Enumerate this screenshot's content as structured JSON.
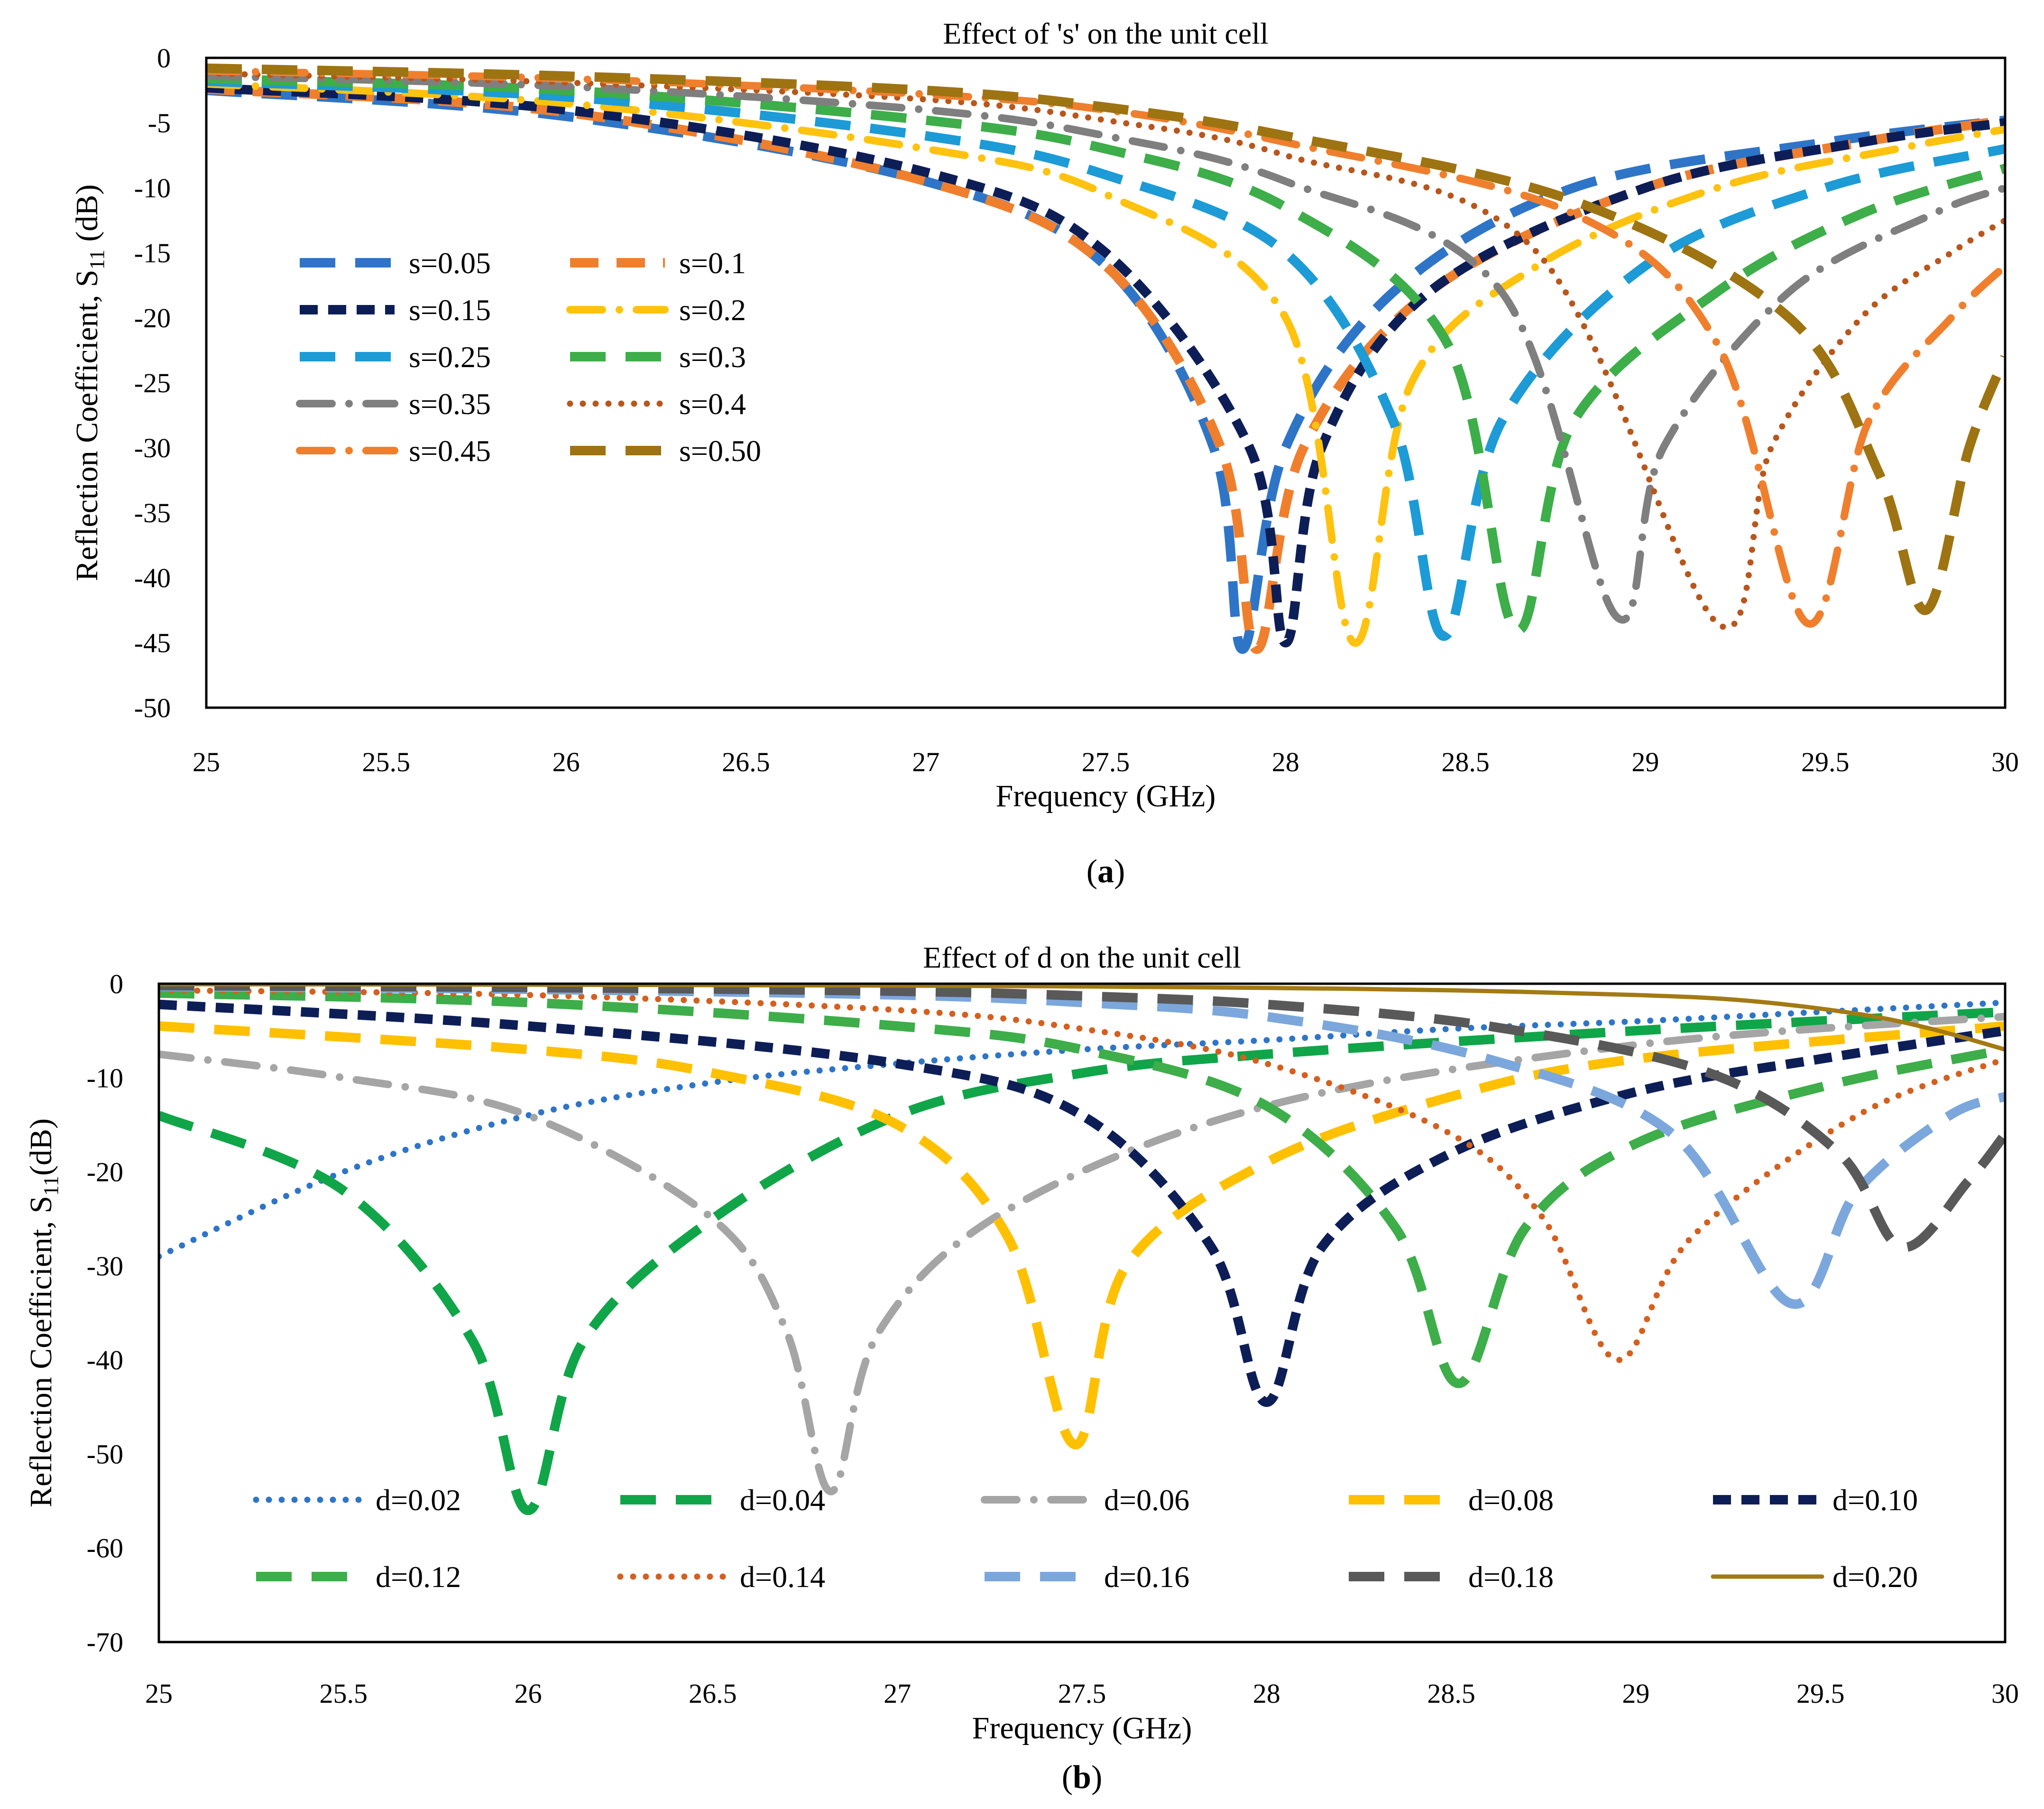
{
  "chart_data": [
    {
      "type": "line",
      "title": "Effect of 's' on the unit cell",
      "xlabel": "Frequency (GHz)",
      "ylabel_main": "Reflection Coefficient, S",
      "ylabel_sub": "11",
      "ylabel_unit": " (dB)",
      "xlim": [
        25,
        30
      ],
      "ylim": [
        -50,
        0
      ],
      "xticks": [
        "25",
        "25.5",
        "26",
        "26.5",
        "27",
        "27.5",
        "28",
        "28.5",
        "29",
        "29.5",
        "30"
      ],
      "yticks": [
        "0",
        "-5",
        "-10",
        "-15",
        "-20",
        "-25",
        "-30",
        "-35",
        "-40",
        "-45",
        "-50"
      ],
      "grid": false,
      "caption_open": "(",
      "caption_letter": "a",
      "caption_close": ")",
      "legend_position": "left-middle, two columns",
      "series": [
        {
          "name": "s=0.05",
          "color": "#2E75C8",
          "style": "long-dash",
          "x": [
            25,
            26,
            27,
            27.5,
            27.8,
            27.88,
            28.0,
            28.3,
            28.8,
            29.5,
            30
          ],
          "y": [
            -2.5,
            -4.5,
            -9.5,
            -16,
            -30,
            -45.5,
            -30,
            -18,
            -10,
            -6.5,
            -4.8
          ]
        },
        {
          "name": "s=0.1",
          "color": "#F07F2D",
          "style": "dash",
          "x": [
            25,
            26,
            27,
            27.5,
            27.82,
            27.92,
            28.05,
            28.4,
            29.0,
            29.6,
            30
          ],
          "y": [
            -2.4,
            -4.2,
            -9.5,
            -16,
            -30,
            -45.5,
            -30,
            -18,
            -10,
            -6.5,
            -4.8
          ]
        },
        {
          "name": "s=0.15",
          "color": "#0D1E57",
          "style": "short-dash",
          "x": [
            25,
            26,
            27,
            27.5,
            27.9,
            28.0,
            28.1,
            28.4,
            29.0,
            29.6,
            30
          ],
          "y": [
            -2.3,
            -4.0,
            -8.8,
            -15,
            -30,
            -45,
            -30,
            -18,
            -10,
            -6.5,
            -5
          ]
        },
        {
          "name": "s=0.2",
          "color": "#FFC20E",
          "style": "dash-dot",
          "x": [
            25,
            26,
            27,
            27.5,
            28.0,
            28.19,
            28.35,
            28.7,
            29.2,
            29.7,
            30
          ],
          "y": [
            -2.0,
            -3.5,
            -7.0,
            -10.5,
            -20,
            -45,
            -25,
            -16,
            -10,
            -7,
            -5.5
          ]
        },
        {
          "name": "s=0.25",
          "color": "#1C9BD6",
          "style": "long-dash",
          "x": [
            25,
            26,
            27,
            27.5,
            28.0,
            28.3,
            28.44,
            28.6,
            29.0,
            29.5,
            30
          ],
          "y": [
            -1.8,
            -3.0,
            -6.0,
            -9.0,
            -15,
            -28,
            -44.5,
            -28,
            -16,
            -10,
            -7
          ]
        },
        {
          "name": "s=0.3",
          "color": "#3DAE49",
          "style": "long-dash",
          "x": [
            25,
            26,
            27,
            27.5,
            28.0,
            28.45,
            28.64,
            28.8,
            29.2,
            29.6,
            30
          ],
          "y": [
            -1.6,
            -2.5,
            -4.8,
            -7.0,
            -11.5,
            -22,
            -44,
            -28,
            -18,
            -12,
            -8.5
          ]
        },
        {
          "name": "s=0.35",
          "color": "#7F7F7F",
          "style": "dash-dot",
          "x": [
            25,
            26,
            27,
            27.5,
            28.0,
            28.6,
            28.92,
            29.05,
            29.4,
            29.8,
            30
          ],
          "y": [
            -1.4,
            -2.2,
            -4.0,
            -6.0,
            -9.5,
            -18,
            -43,
            -30,
            -18,
            -12,
            -10
          ]
        },
        {
          "name": "s=0.4",
          "color": "#B8561C",
          "style": "dotted",
          "x": [
            25,
            26,
            27,
            27.5,
            28.0,
            28.7,
            29.2,
            29.35,
            29.6,
            29.85,
            30
          ],
          "y": [
            -1.2,
            -1.9,
            -3.2,
            -4.8,
            -7.5,
            -15,
            -43.5,
            -30,
            -20,
            -15,
            -12.5
          ]
        },
        {
          "name": "s=0.45",
          "color": "#F07F2D",
          "style": "dash-dot",
          "x": [
            25,
            26,
            27,
            27.5,
            28.0,
            28.8,
            29.2,
            29.45,
            29.62,
            29.85,
            30
          ],
          "y": [
            -1.0,
            -1.6,
            -2.8,
            -4.0,
            -6.5,
            -12,
            -22,
            -43.5,
            -28,
            -20,
            -16
          ]
        },
        {
          "name": "s=0.50",
          "color": "#9E7311",
          "style": "long-dash",
          "x": [
            25,
            26,
            27,
            27.5,
            28.0,
            28.8,
            29.4,
            29.65,
            29.78,
            29.9,
            30
          ],
          "y": [
            -0.8,
            -1.4,
            -2.5,
            -3.8,
            -6.0,
            -11,
            -20,
            -32,
            -42.5,
            -30,
            -23
          ]
        }
      ]
    },
    {
      "type": "line",
      "title": "Effect of d on the unit cell",
      "xlabel": "Frequency (GHz)",
      "ylabel_main": "Reflection Coefficient, S",
      "ylabel_sub": "11",
      "ylabel_unit": "(dB)",
      "xlim": [
        25,
        30
      ],
      "ylim": [
        -70,
        0
      ],
      "xticks": [
        "25",
        "25.5",
        "26",
        "26.5",
        "27",
        "27.5",
        "28",
        "28.5",
        "29",
        "29.5",
        "30"
      ],
      "yticks": [
        "0",
        "-10",
        "-20",
        "-30",
        "-40",
        "-50",
        "-60",
        "-70"
      ],
      "grid": false,
      "caption_open": "(",
      "caption_letter": "b",
      "caption_close": ")",
      "legend_position": "bottom, five columns",
      "series": [
        {
          "name": "d=0.02",
          "color": "#2E75C8",
          "style": "dotted",
          "x": [
            25,
            25.5,
            26,
            26.5,
            27,
            27.5,
            28,
            28.5,
            29,
            29.5,
            30
          ],
          "y": [
            -29,
            -20,
            -14,
            -10.5,
            -8.5,
            -7.0,
            -6.0,
            -4.8,
            -4.0,
            -3.0,
            -2.0
          ]
        },
        {
          "name": "d=0.04",
          "color": "#10A548",
          "style": "long-dash",
          "x": [
            25,
            25.5,
            25.85,
            26.0,
            26.15,
            26.5,
            27,
            27.5,
            28,
            29,
            30
          ],
          "y": [
            -14,
            -22,
            -38,
            -56,
            -38,
            -25,
            -14,
            -9.5,
            -7.5,
            -5,
            -3
          ]
        },
        {
          "name": "d=0.06",
          "color": "#A5A5A5",
          "style": "dash-dot",
          "x": [
            25,
            25.5,
            26,
            26.5,
            26.7,
            26.82,
            26.95,
            27.3,
            28,
            29,
            30
          ],
          "y": [
            -7.5,
            -10,
            -14,
            -25,
            -37,
            -54,
            -37,
            -24,
            -13,
            -6.5,
            -3.5
          ]
        },
        {
          "name": "d=0.08",
          "color": "#FFC000",
          "style": "long-dash",
          "x": [
            25,
            26,
            26.5,
            27,
            27.3,
            27.48,
            27.62,
            28,
            28.5,
            29,
            30
          ],
          "y": [
            -4.5,
            -7,
            -9.5,
            -15,
            -27,
            -49,
            -30,
            -19,
            -12,
            -8,
            -4.5
          ]
        },
        {
          "name": "d=0.10",
          "color": "#0D1E57",
          "style": "short-dash",
          "x": [
            25,
            26,
            27,
            27.5,
            27.85,
            28.0,
            28.15,
            28.5,
            29,
            29.5,
            30
          ],
          "y": [
            -2.2,
            -4.5,
            -8.5,
            -14,
            -28,
            -44.5,
            -28,
            -18,
            -11.5,
            -8,
            -5
          ]
        },
        {
          "name": "d=0.12",
          "color": "#3DAE49",
          "style": "long-dash",
          "x": [
            25,
            26,
            27,
            27.5,
            28,
            28.35,
            28.52,
            28.7,
            29.0,
            29.5,
            30
          ],
          "y": [
            -1.0,
            -2.0,
            -4.5,
            -7.0,
            -13,
            -26,
            -42.5,
            -26,
            -17,
            -11,
            -7
          ]
        },
        {
          "name": "d=0.14",
          "color": "#D55F1E",
          "style": "dotted",
          "x": [
            25,
            26,
            27,
            27.5,
            28,
            28.5,
            28.75,
            28.95,
            29.15,
            29.6,
            30
          ],
          "y": [
            -0.7,
            -1.2,
            -2.8,
            -4.8,
            -8.5,
            -16,
            -25,
            -40,
            -27,
            -14,
            -8
          ]
        },
        {
          "name": "d=0.16",
          "color": "#7BA7DC",
          "style": "long-dash",
          "x": [
            25,
            26,
            27,
            27.5,
            28,
            28.6,
            29.1,
            29.42,
            29.6,
            29.85,
            30
          ],
          "y": [
            -0.3,
            -0.6,
            -1.2,
            -2.0,
            -3.5,
            -8,
            -16,
            -34,
            -22,
            -14,
            -12
          ]
        },
        {
          "name": "d=0.18",
          "color": "#595959",
          "style": "long-dash",
          "x": [
            25,
            26,
            27,
            27.5,
            28,
            28.6,
            29.2,
            29.55,
            29.72,
            29.9,
            30
          ],
          "y": [
            -0.2,
            -0.4,
            -0.8,
            -1.3,
            -2.2,
            -4.5,
            -9.5,
            -18,
            -28,
            -21,
            -16
          ]
        },
        {
          "name": "d=0.20",
          "color": "#A37A13",
          "style": "solid",
          "x": [
            25,
            26,
            27,
            27.5,
            28,
            28.5,
            29,
            29.3,
            29.6,
            29.8,
            30
          ],
          "y": [
            -0.05,
            -0.1,
            -0.2,
            -0.3,
            -0.45,
            -0.7,
            -1.2,
            -1.8,
            -3.2,
            -4.8,
            -7.0
          ]
        }
      ]
    }
  ]
}
